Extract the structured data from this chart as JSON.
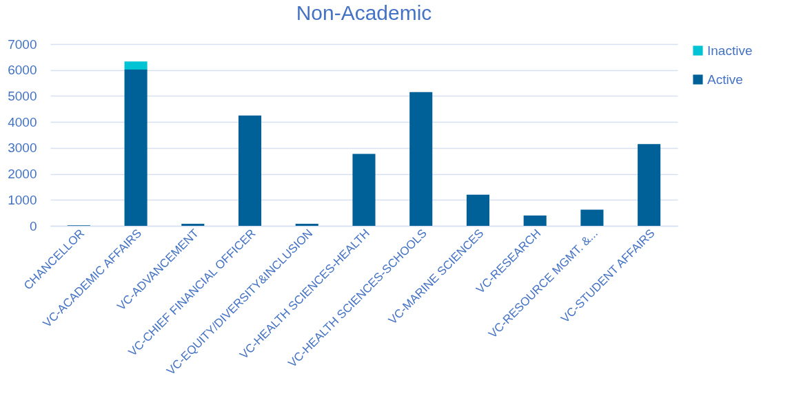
{
  "chart_data": {
    "type": "bar",
    "title": "Non-Academic",
    "stacked": true,
    "categories": [
      "CHANCELLOR",
      "VC-ACADEMIC AFFAIRS",
      "VC-ADVANCEMENT",
      "VC-CHIEF FINANCIAL OFFICER",
      "VC-EQUITY/DIVERSITY&INCLUSION",
      "VC-HEALTH SCIENCES-HEALTH",
      "VC-HEALTH SCIENCES-SCHOOLS",
      "VC-MARINE SCIENCES",
      "VC-RESEARCH",
      "VC-RESOURCE MGMT. &...",
      "VC-STUDENT AFFAIRS"
    ],
    "series": [
      {
        "name": "Active",
        "color": "#006199",
        "values": [
          20,
          6020,
          80,
          4250,
          80,
          2770,
          5150,
          1200,
          400,
          620,
          3150
        ]
      },
      {
        "name": "Inactive",
        "color": "#00c4d4",
        "values": [
          null,
          310,
          null,
          null,
          null,
          null,
          null,
          null,
          null,
          null,
          null
        ]
      }
    ],
    "ylim": [
      0,
      7000
    ],
    "yticks": [
      0,
      1000,
      2000,
      3000,
      4000,
      5000,
      6000,
      7000
    ],
    "grid": "y",
    "legend": "right"
  }
}
